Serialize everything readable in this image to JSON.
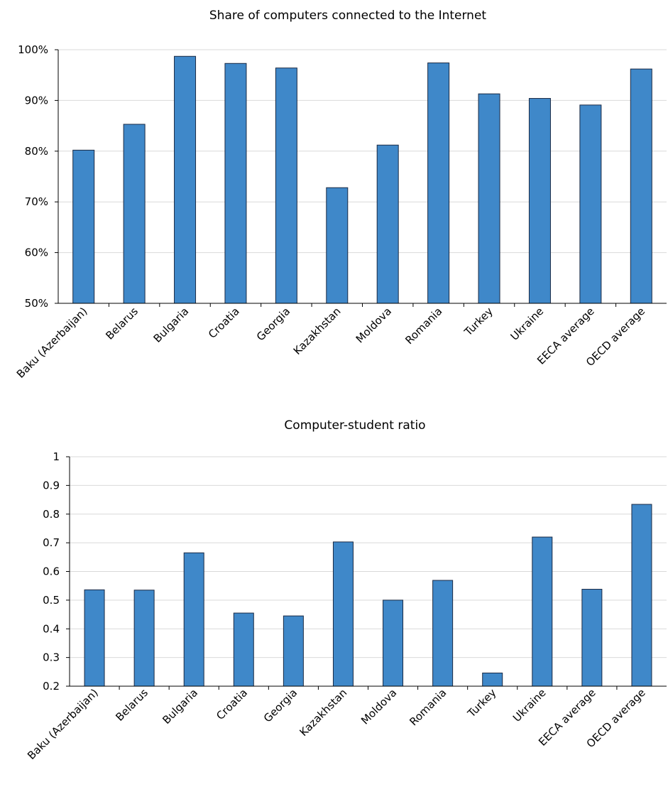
{
  "chart_data": [
    {
      "type": "bar",
      "title": "Share of computers connected to the Internet",
      "categories": [
        "Baku (Azerbaijan)",
        "Belarus",
        "Bulgaria",
        "Croatia",
        "Georgia",
        "Kazakhstan",
        "Moldova",
        "Romania",
        "Turkey",
        "Ukraine",
        "EECA average",
        "OECD average"
      ],
      "values": [
        0.802,
        0.853,
        0.987,
        0.973,
        0.964,
        0.728,
        0.812,
        0.974,
        0.913,
        0.904,
        0.891,
        0.962
      ],
      "ylim": [
        0.5,
        1.0
      ],
      "yticks": [
        0.5,
        0.6,
        0.7,
        0.8,
        0.9,
        1.0
      ],
      "ytick_labels": [
        "50%",
        "60%",
        "70%",
        "80%",
        "90%",
        "100%"
      ],
      "xlabel": "",
      "ylabel": "",
      "grid": true,
      "legend": "none",
      "color": "#3f88c9"
    },
    {
      "type": "bar",
      "title": "Computer-student ratio",
      "categories": [
        "Baku (Azerbaijan)",
        "Belarus",
        "Bulgaria",
        "Croatia",
        "Georgia",
        "Kazakhstan",
        "Moldova",
        "Romania",
        "Turkey",
        "Ukraine",
        "EECA average",
        "OECD average"
      ],
      "values": [
        0.536,
        0.535,
        0.665,
        0.455,
        0.445,
        0.703,
        0.5,
        0.569,
        0.246,
        0.72,
        0.538,
        0.834
      ],
      "ylim": [
        0.2,
        1.0
      ],
      "yticks": [
        0.2,
        0.3,
        0.4,
        0.5,
        0.6,
        0.7,
        0.8,
        0.9,
        1.0
      ],
      "ytick_labels": [
        "0.2",
        "0.3",
        "0.4",
        "0.5",
        "0.6",
        "0.7",
        "0.8",
        "0.9",
        "1"
      ],
      "xlabel": "",
      "ylabel": "",
      "grid": true,
      "legend": "none",
      "color": "#3f88c9"
    }
  ]
}
